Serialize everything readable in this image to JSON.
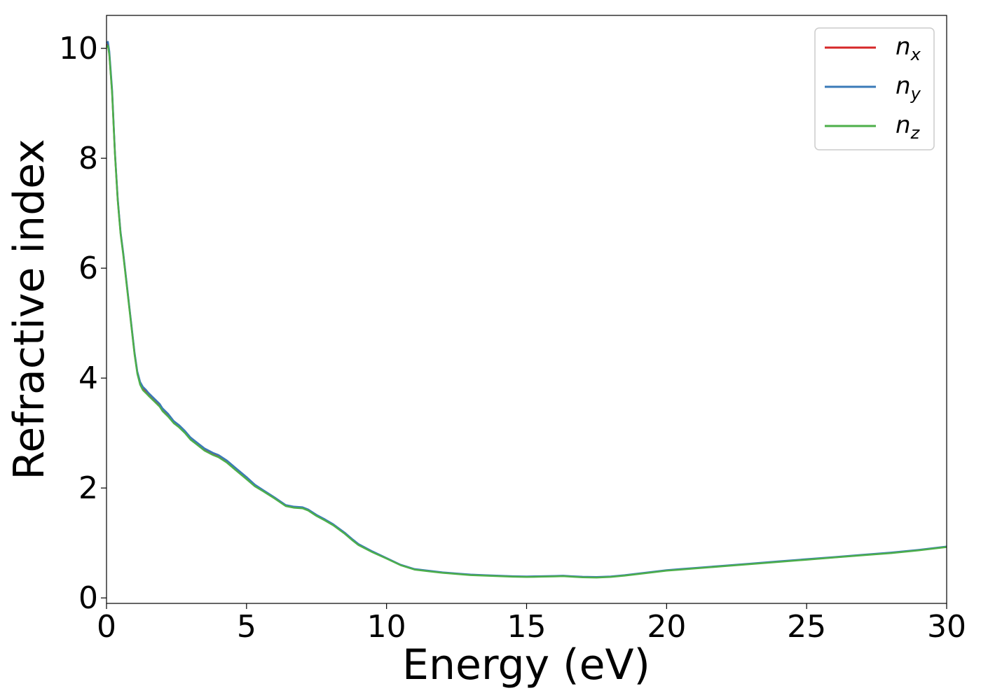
{
  "chart_data": {
    "type": "line",
    "xlabel": "Energy (eV)",
    "ylabel": "Refractive index",
    "xlim": [
      0,
      30
    ],
    "ylim": [
      -0.1,
      10.6
    ],
    "xticks": [
      0,
      5,
      10,
      15,
      20,
      25,
      30
    ],
    "xtick_labels": [
      "0",
      "5",
      "10",
      "15",
      "20",
      "25",
      "30"
    ],
    "yticks": [
      0,
      2,
      4,
      6,
      8,
      10
    ],
    "ytick_labels": [
      "0",
      "2",
      "4",
      "6",
      "8",
      "10"
    ],
    "grid": false,
    "legend_position": "top-right",
    "x": [
      0.0,
      0.05,
      0.1,
      0.2,
      0.3,
      0.4,
      0.5,
      0.6,
      0.8,
      1.0,
      1.1,
      1.2,
      1.3,
      1.4,
      1.5,
      1.7,
      1.9,
      2.0,
      2.2,
      2.4,
      2.6,
      2.8,
      3.0,
      3.2,
      3.5,
      3.8,
      4.0,
      4.3,
      4.6,
      5.0,
      5.3,
      5.6,
      6.0,
      6.4,
      6.7,
      7.0,
      7.2,
      7.5,
      7.8,
      8.1,
      8.5,
      8.8,
      9.0,
      9.5,
      10.0,
      10.5,
      11.0,
      11.5,
      12.0,
      12.5,
      13.0,
      13.5,
      14.0,
      14.5,
      15.0,
      15.5,
      16.0,
      16.3,
      16.6,
      17.0,
      17.5,
      18.0,
      18.5,
      19.0,
      19.5,
      20.0,
      20.5,
      21.0,
      22.0,
      23.0,
      24.0,
      25.0,
      26.0,
      27.0,
      28.0,
      29.0,
      30.0
    ],
    "series": [
      {
        "name": "n_x",
        "label_main": "n",
        "label_sub": "x",
        "color": "#d62728",
        "y": [
          10.05,
          10.08,
          9.9,
          9.2,
          8.1,
          7.25,
          6.65,
          6.25,
          5.35,
          4.45,
          4.1,
          3.9,
          3.8,
          3.75,
          3.7,
          3.6,
          3.5,
          3.42,
          3.32,
          3.2,
          3.12,
          3.02,
          2.9,
          2.82,
          2.7,
          2.62,
          2.58,
          2.48,
          2.35,
          2.18,
          2.05,
          1.95,
          1.82,
          1.68,
          1.65,
          1.64,
          1.6,
          1.5,
          1.42,
          1.33,
          1.18,
          1.05,
          0.97,
          0.84,
          0.72,
          0.6,
          0.52,
          0.49,
          0.46,
          0.44,
          0.42,
          0.41,
          0.4,
          0.39,
          0.385,
          0.39,
          0.395,
          0.4,
          0.39,
          0.38,
          0.375,
          0.385,
          0.41,
          0.44,
          0.47,
          0.5,
          0.52,
          0.54,
          0.58,
          0.62,
          0.66,
          0.7,
          0.74,
          0.78,
          0.82,
          0.87,
          0.93
        ]
      },
      {
        "name": "n_y",
        "label_main": "n",
        "label_sub": "y",
        "color": "#3a7ab8",
        "y": [
          10.1,
          10.12,
          9.95,
          9.25,
          8.12,
          7.27,
          6.67,
          6.27,
          5.37,
          4.47,
          4.12,
          3.93,
          3.84,
          3.79,
          3.73,
          3.63,
          3.53,
          3.45,
          3.35,
          3.22,
          3.14,
          3.04,
          2.92,
          2.84,
          2.72,
          2.64,
          2.6,
          2.5,
          2.37,
          2.2,
          2.06,
          1.96,
          1.83,
          1.69,
          1.66,
          1.65,
          1.61,
          1.51,
          1.43,
          1.34,
          1.19,
          1.06,
          0.98,
          0.845,
          0.725,
          0.605,
          0.525,
          0.495,
          0.465,
          0.445,
          0.425,
          0.415,
          0.405,
          0.395,
          0.39,
          0.395,
          0.4,
          0.405,
          0.395,
          0.385,
          0.38,
          0.39,
          0.415,
          0.445,
          0.475,
          0.505,
          0.525,
          0.545,
          0.585,
          0.625,
          0.665,
          0.705,
          0.745,
          0.785,
          0.825,
          0.875,
          0.935
        ]
      },
      {
        "name": "n_z",
        "label_main": "n",
        "label_sub": "z",
        "color": "#4daf4a",
        "y": [
          10.02,
          10.05,
          9.88,
          9.18,
          8.08,
          7.23,
          6.63,
          6.23,
          5.33,
          4.43,
          4.08,
          3.88,
          3.78,
          3.73,
          3.68,
          3.58,
          3.48,
          3.4,
          3.3,
          3.18,
          3.1,
          3.0,
          2.88,
          2.8,
          2.68,
          2.6,
          2.56,
          2.46,
          2.33,
          2.16,
          2.03,
          1.94,
          1.81,
          1.67,
          1.64,
          1.63,
          1.59,
          1.49,
          1.41,
          1.32,
          1.17,
          1.04,
          0.96,
          0.83,
          0.715,
          0.595,
          0.515,
          0.485,
          0.455,
          0.435,
          0.415,
          0.405,
          0.395,
          0.385,
          0.38,
          0.385,
          0.39,
          0.395,
          0.385,
          0.375,
          0.37,
          0.38,
          0.405,
          0.435,
          0.465,
          0.495,
          0.515,
          0.535,
          0.575,
          0.615,
          0.655,
          0.695,
          0.735,
          0.775,
          0.815,
          0.865,
          0.925
        ]
      }
    ]
  }
}
